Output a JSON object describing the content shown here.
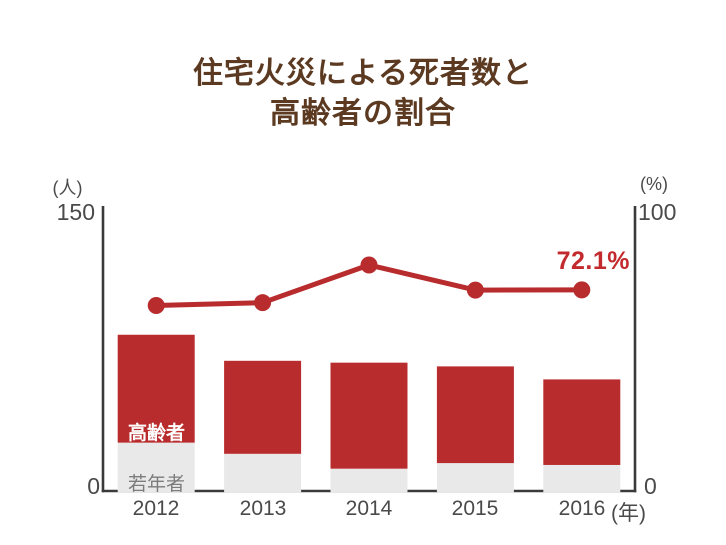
{
  "title": {
    "line1": "住宅火災による死者数と",
    "line2": "高齢者の割合"
  },
  "chart_data": {
    "type": "bar+line",
    "categories": [
      "2012",
      "2013",
      "2014",
      "2015",
      "2016"
    ],
    "x_axis_unit": "(年)",
    "left_axis": {
      "unit": "(人)",
      "max": 150,
      "min": 0,
      "max_label": "150",
      "min_label": "0"
    },
    "right_axis": {
      "unit": "(%)",
      "max": 100,
      "min": 0,
      "max_label": "100",
      "min_label": "0"
    },
    "bar_series": [
      {
        "name": "若年者",
        "color": "#e9e9e9",
        "values": [
          26,
          20,
          12,
          15,
          14
        ]
      },
      {
        "name": "高齢者",
        "color": "#b92c2e",
        "values": [
          58,
          50,
          57,
          52,
          46
        ]
      }
    ],
    "bar_totals": [
      84,
      70,
      69,
      67,
      60
    ],
    "line_series": {
      "name": "高齢者の割合",
      "color": "#b92c2e",
      "values": [
        66.5,
        67.5,
        81.0,
        72.0,
        72.1
      ]
    },
    "annotation": {
      "text": "72.1%",
      "color": "#c22a2e"
    },
    "grid": false,
    "legend_position": "on-first-bar"
  },
  "colors": {
    "title": "#5b3a21",
    "axis": "#3a3a3a",
    "axis_text": "#4a4a4a",
    "bar_elderly": "#b92c2e",
    "bar_young": "#e9e9e9",
    "line": "#b92c2e",
    "background": "#ffffff"
  }
}
